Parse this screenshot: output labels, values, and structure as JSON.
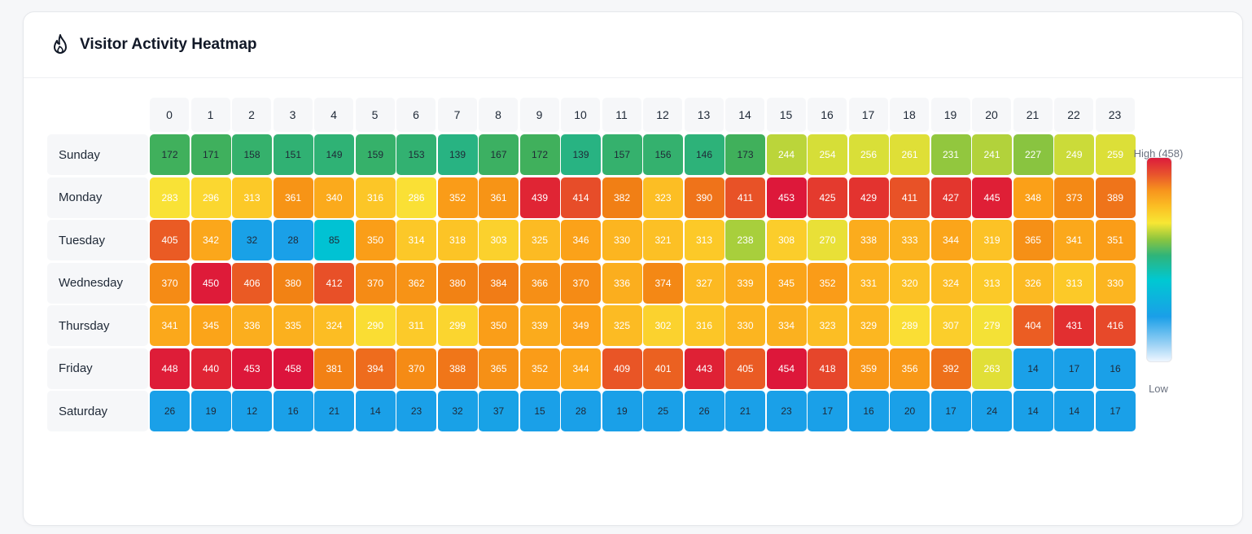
{
  "header": {
    "title": "Visitor Activity Heatmap",
    "icon": "flame-icon"
  },
  "legend": {
    "high_label": "High (458)",
    "low_label": "Low"
  },
  "chart_data": {
    "type": "heatmap",
    "title": "Visitor Activity Heatmap",
    "x": [
      "0",
      "1",
      "2",
      "3",
      "4",
      "5",
      "6",
      "7",
      "8",
      "9",
      "10",
      "11",
      "12",
      "13",
      "14",
      "15",
      "16",
      "17",
      "18",
      "19",
      "20",
      "21",
      "22",
      "23"
    ],
    "y": [
      "Sunday",
      "Monday",
      "Tuesday",
      "Wednesday",
      "Thursday",
      "Friday",
      "Saturday"
    ],
    "values": [
      [
        172,
        171,
        158,
        151,
        149,
        159,
        153,
        139,
        167,
        172,
        139,
        157,
        156,
        146,
        173,
        244,
        254,
        256,
        261,
        231,
        241,
        227,
        249,
        259
      ],
      [
        283,
        296,
        313,
        361,
        340,
        316,
        286,
        352,
        361,
        439,
        414,
        382,
        323,
        390,
        411,
        453,
        425,
        429,
        411,
        427,
        445,
        348,
        373,
        389
      ],
      [
        405,
        342,
        32,
        28,
        85,
        350,
        314,
        318,
        303,
        325,
        346,
        330,
        321,
        313,
        238,
        308,
        270,
        338,
        333,
        344,
        319,
        365,
        341,
        351
      ],
      [
        370,
        450,
        406,
        380,
        412,
        370,
        362,
        380,
        384,
        366,
        370,
        336,
        374,
        327,
        339,
        345,
        352,
        331,
        320,
        324,
        313,
        326,
        313,
        330
      ],
      [
        341,
        345,
        336,
        335,
        324,
        290,
        311,
        299,
        350,
        339,
        349,
        325,
        302,
        316,
        330,
        334,
        323,
        329,
        289,
        307,
        279,
        404,
        431,
        416
      ],
      [
        448,
        440,
        453,
        458,
        381,
        394,
        370,
        388,
        365,
        352,
        344,
        409,
        401,
        443,
        405,
        454,
        418,
        359,
        356,
        392,
        263,
        14,
        17,
        16
      ],
      [
        26,
        19,
        12,
        16,
        21,
        14,
        23,
        32,
        37,
        15,
        28,
        19,
        25,
        26,
        21,
        23,
        17,
        16,
        20,
        17,
        24,
        14,
        14,
        17
      ]
    ],
    "max": 458,
    "legend": "right"
  }
}
